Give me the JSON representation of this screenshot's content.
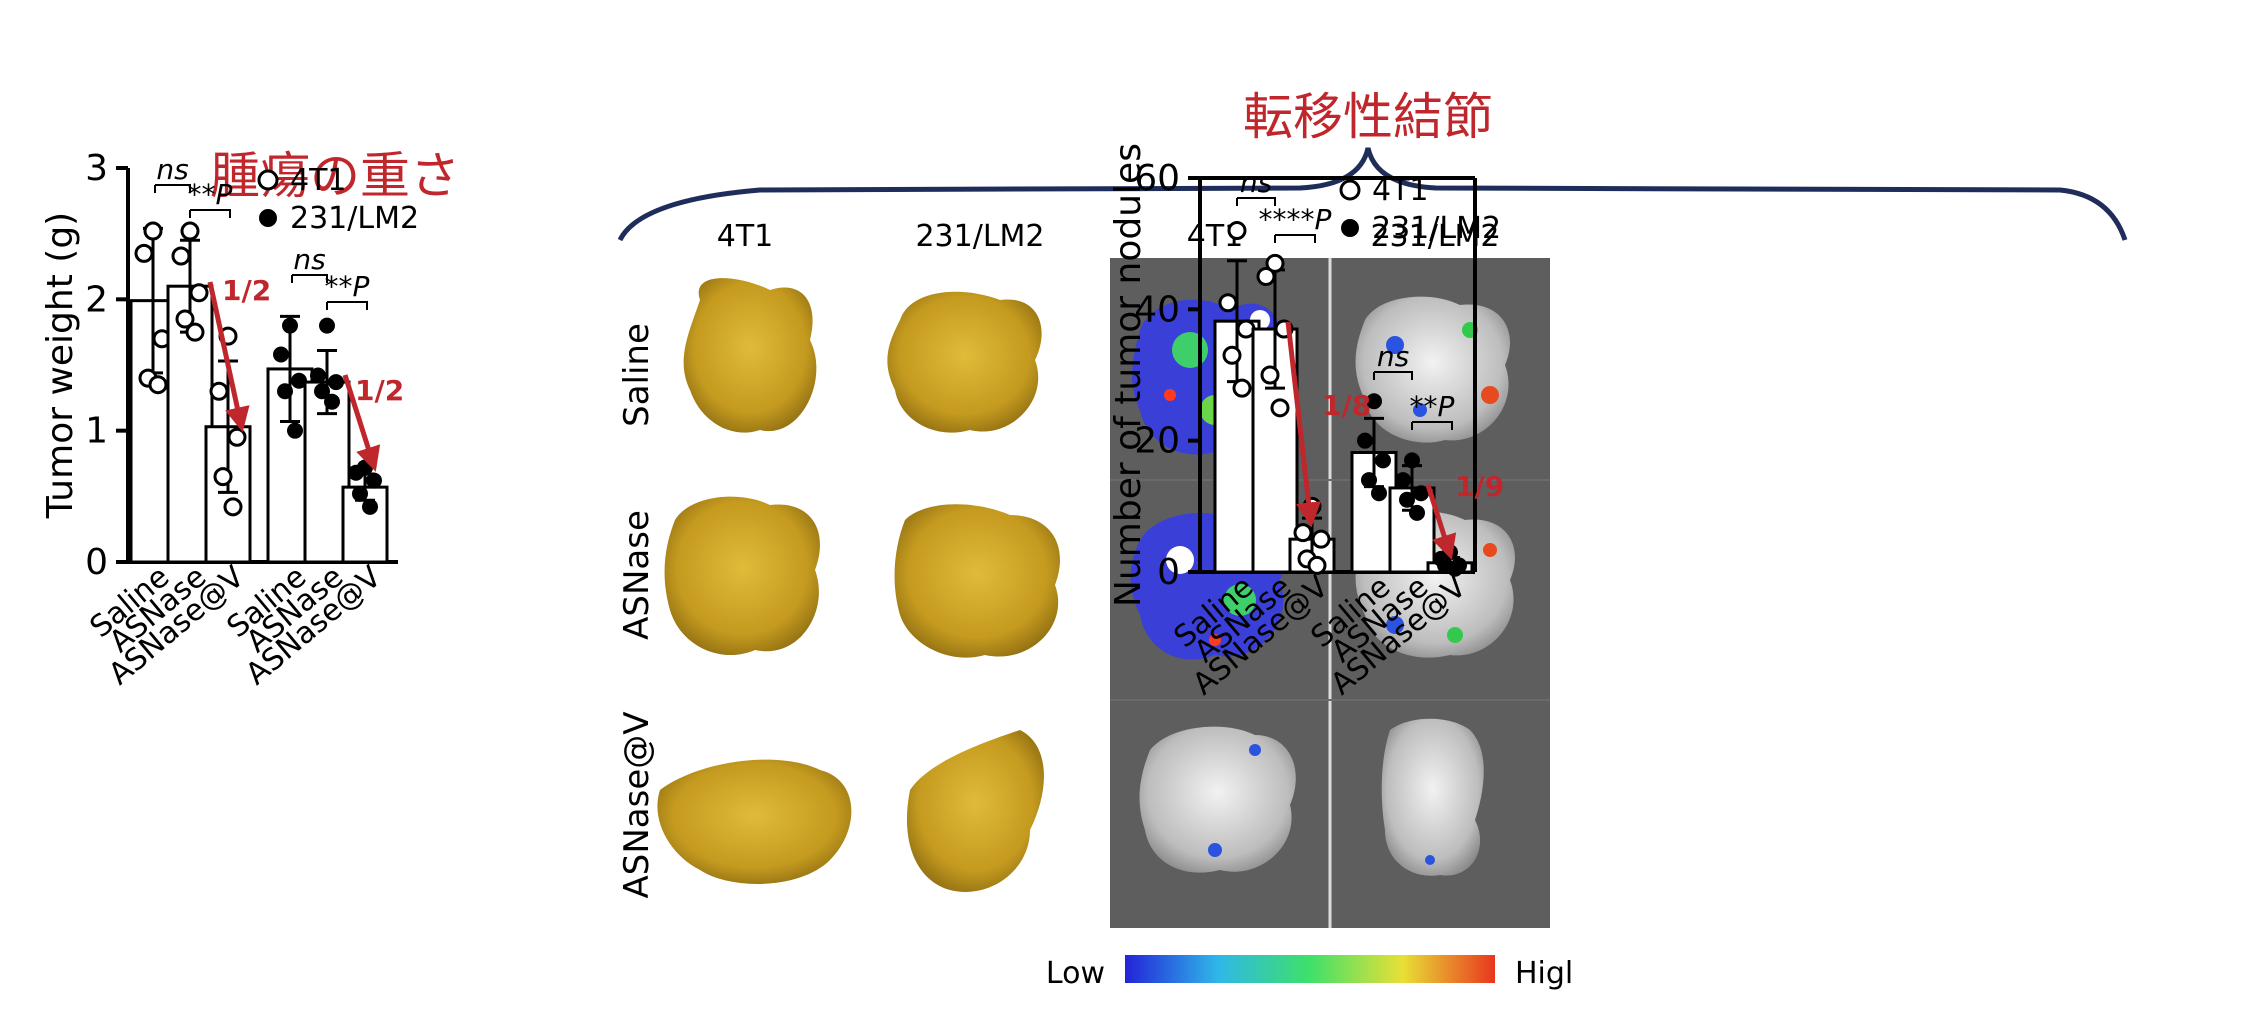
{
  "headings": {
    "tumor_weight_jp": "腫瘍の重さ",
    "metastatic_jp": "転移性結節"
  },
  "accent_red": "#c0272d",
  "brace_color": "#1f2d5a",
  "photo_panel": {
    "col_headers": [
      "4T1",
      "231/LM2",
      "4T1",
      "231/LM2"
    ],
    "row_labels": [
      "Saline",
      "ASNase",
      "ASNase@V"
    ],
    "colorbar_low": "Low",
    "colorbar_high": "Higl",
    "lung_color": "#c9a227"
  },
  "chart_data": [
    {
      "type": "bar",
      "ylabel": "Tumor weight (g)",
      "ylim": [
        0,
        3
      ],
      "yticks": [
        0,
        1,
        2,
        3
      ],
      "categories": [
        "Saline",
        "ASNase",
        "ASNase@V"
      ],
      "legend": [
        "4T1",
        "231/LM2"
      ],
      "legend_placement": "top-right",
      "series": [
        {
          "name": "4T1",
          "marker": "open",
          "means": [
            1.99,
            2.1,
            1.03
          ],
          "sd": [
            0.55,
            0.35,
            0.5
          ],
          "points": [
            [
              2.52,
              2.35,
              1.7,
              1.4,
              1.35
            ],
            [
              2.52,
              2.33,
              2.05,
              1.85,
              1.75
            ],
            [
              1.72,
              1.3,
              0.95,
              0.65,
              0.42
            ]
          ]
        },
        {
          "name": "231/LM2",
          "marker": "filled",
          "means": [
            1.47,
            1.37,
            0.57
          ],
          "sd": [
            0.4,
            0.24,
            0.1
          ],
          "points": [
            [
              1.8,
              1.58,
              1.38,
              1.3,
              1.0
            ],
            [
              1.8,
              1.42,
              1.37,
              1.3,
              1.22
            ],
            [
              0.72,
              0.68,
              0.62,
              0.52,
              0.42
            ]
          ]
        }
      ],
      "annotations": {
        "sig_4t1": [
          "ns",
          "**P"
        ],
        "sig_lm2": [
          "ns",
          "**P"
        ],
        "fold": [
          "1/2",
          "1/2"
        ]
      }
    },
    {
      "type": "bar",
      "ylabel": "Number of tumor nodules",
      "ylim": [
        0,
        60
      ],
      "yticks": [
        0,
        20,
        40,
        60
      ],
      "categories": [
        "Saline",
        "ASNase",
        "ASNase@V"
      ],
      "legend": [
        "4T1",
        "231/LM2"
      ],
      "legend_placement": "top-right",
      "series": [
        {
          "name": "4T1",
          "marker": "open",
          "means": [
            38.2,
            37.0,
            5.0
          ],
          "sd": [
            9.2,
            9.0,
            3.2
          ],
          "points": [
            [
              52,
              41,
              37,
              33,
              28
            ],
            [
              47,
              45,
              37,
              30,
              25
            ],
            [
              10,
              6,
              5,
              2,
              1
            ]
          ]
        },
        {
          "name": "231/LM2",
          "marker": "filled",
          "means": [
            18.2,
            12.8,
            1.4
          ],
          "sd": [
            5.2,
            3.4,
            0.8
          ],
          "points": [
            [
              26,
              20,
              17,
              14,
              12
            ],
            [
              17,
              14,
              12,
              11,
              9
            ],
            [
              3,
              2,
              1,
              1,
              0.5
            ]
          ]
        }
      ],
      "annotations": {
        "sig_4t1": [
          "ns",
          "****P"
        ],
        "sig_lm2": [
          "ns",
          "**P"
        ],
        "fold": [
          "1/8",
          "1/9"
        ]
      }
    }
  ]
}
